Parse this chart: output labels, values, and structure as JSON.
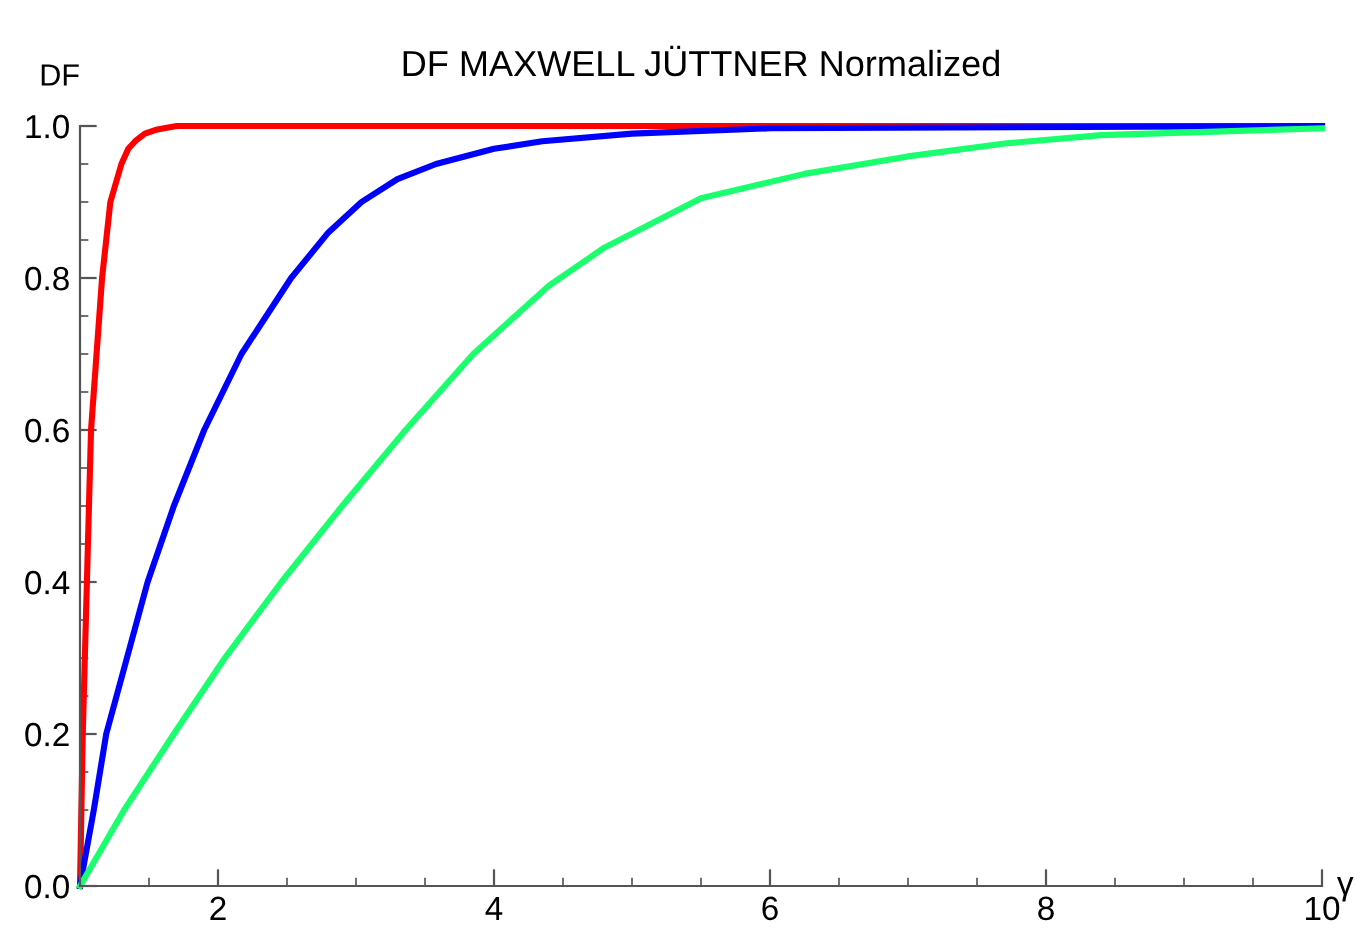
{
  "chart_data": {
    "type": "line",
    "title": "DF MAXWELL JÜTTNER Normalized",
    "xlabel": "γ",
    "ylabel": "DF",
    "xlim": [
      1,
      10
    ],
    "ylim": [
      0,
      1
    ],
    "xticks": [
      2,
      4,
      6,
      8,
      10
    ],
    "yticks": [
      {
        "value": 0,
        "label": "0.0"
      },
      {
        "value": 0.2,
        "label": "0.2"
      },
      {
        "value": 0.4,
        "label": "0.4"
      },
      {
        "value": 0.6,
        "label": "0.6"
      },
      {
        "value": 0.8,
        "label": "0.8"
      },
      {
        "value": 1,
        "label": "1.0"
      }
    ],
    "grid": false,
    "marker": "none",
    "line_style": "solid",
    "series": [
      {
        "color": "#ff0000",
        "x": [
          1,
          1.02,
          1.05,
          1.08,
          1.12,
          1.16,
          1.22,
          1.3,
          1.35,
          1.4,
          1.47,
          1.55,
          1.7,
          10
        ],
        "values": [
          0,
          0.2,
          0.4,
          0.6,
          0.7,
          0.8,
          0.9,
          0.95,
          0.97,
          0.98,
          0.99,
          0.995,
          1,
          1
        ]
      },
      {
        "color": "#0000ff",
        "x": [
          1,
          1.1,
          1.19,
          1.34,
          1.49,
          1.68,
          1.9,
          2.17,
          2.53,
          2.8,
          3.04,
          3.3,
          3.58,
          4,
          4.35,
          5,
          6,
          10
        ],
        "values": [
          0,
          0.1,
          0.2,
          0.3,
          0.4,
          0.5,
          0.6,
          0.7,
          0.8,
          0.86,
          0.9,
          0.93,
          0.95,
          0.97,
          0.98,
          0.99,
          0.997,
          1
        ]
      },
      {
        "color": "#1aff6e",
        "x": [
          1,
          1.32,
          1.68,
          2.05,
          2.46,
          2.9,
          3.36,
          3.85,
          4.4,
          4.8,
          5.5,
          6.25,
          7,
          7.7,
          8.4,
          10
        ],
        "values": [
          0,
          0.1,
          0.2,
          0.3,
          0.4,
          0.5,
          0.6,
          0.7,
          0.79,
          0.84,
          0.905,
          0.937,
          0.96,
          0.977,
          0.988,
          0.997
        ]
      }
    ]
  }
}
